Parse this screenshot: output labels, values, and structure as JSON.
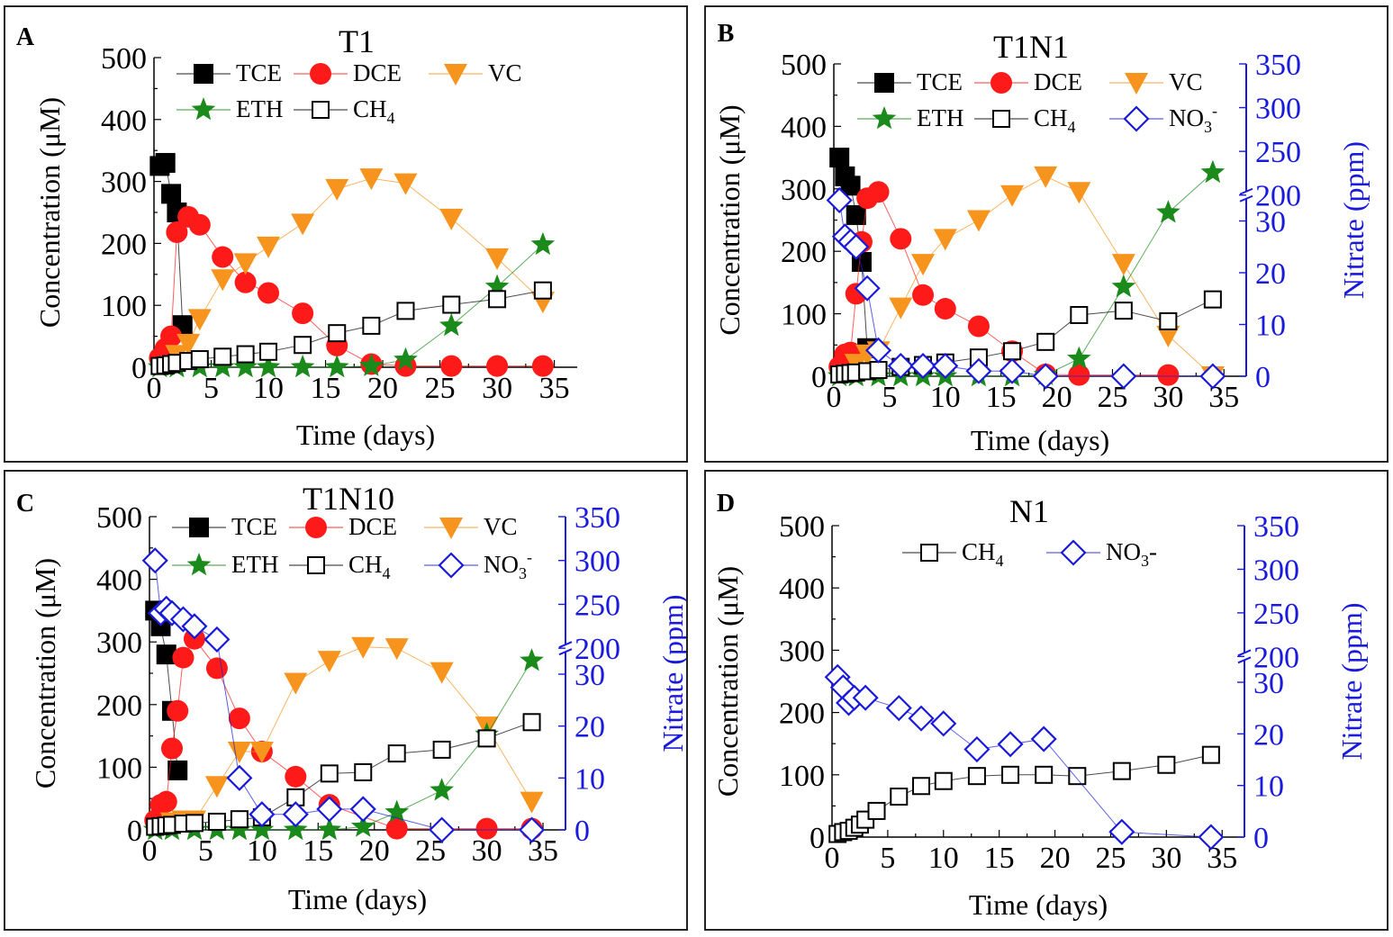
{
  "colors": {
    "TCE": "#000000",
    "DCE": "#ff1a1a",
    "VC": "#f7941d",
    "ETH": "#1a8a1a",
    "CH4": "#000000",
    "NO3": "#1a1adc"
  },
  "chart_data": [
    {
      "label": "A",
      "title": "T1",
      "type": "line",
      "xlabel": "Time (days)",
      "ylabel": "Concentration (μM)",
      "xlim": [
        0,
        37
      ],
      "ylim": [
        0,
        500
      ],
      "xticks": [
        "0",
        "5",
        "10",
        "15",
        "20",
        "25",
        "30",
        "35"
      ],
      "yticks": [
        "0",
        "100",
        "200",
        "300",
        "400",
        "500"
      ],
      "legend": {
        "TCE": "TCE",
        "DCE": "DCE",
        "VC": "VC",
        "ETH": "ETH",
        "CH4": "CH",
        "CH4_sub": "4"
      },
      "series": [
        {
          "name": "TCE",
          "x": [
            0.5,
            1,
            1.5,
            2,
            2.5
          ],
          "y": [
            325,
            330,
            280,
            250,
            68
          ]
        },
        {
          "name": "DCE",
          "x": [
            0.5,
            1,
            1.5,
            2,
            3,
            4,
            6,
            8,
            10,
            13,
            16,
            19,
            22,
            26,
            30,
            34
          ],
          "y": [
            15,
            30,
            50,
            218,
            243,
            230,
            178,
            137,
            120,
            87,
            35,
            5,
            2,
            2,
            2,
            2
          ]
        },
        {
          "name": "VC",
          "x": [
            2,
            3,
            4,
            6,
            8,
            10,
            13,
            16,
            19,
            22,
            26,
            30,
            34
          ],
          "y": [
            20,
            38,
            78,
            142,
            168,
            195,
            232,
            288,
            305,
            297,
            240,
            176,
            106
          ]
        },
        {
          "name": "ETH",
          "x": [
            0.5,
            2,
            4,
            6,
            8,
            10,
            13,
            16,
            19,
            22,
            26,
            30,
            34
          ],
          "y": [
            0,
            0,
            0,
            0,
            0,
            0,
            0,
            0,
            2,
            12,
            67,
            130,
            198
          ]
        },
        {
          "name": "CH4",
          "x": [
            0.5,
            1,
            1.5,
            2,
            3,
            4,
            6,
            8,
            10,
            13,
            16,
            19,
            22,
            26,
            30,
            34
          ],
          "y": [
            2,
            3,
            5,
            7,
            10,
            13,
            17,
            21,
            25,
            36,
            55,
            67,
            91,
            101,
            110,
            124
          ]
        }
      ]
    },
    {
      "label": "B",
      "title": "T1N1",
      "type": "line",
      "xlabel": "Time (days)",
      "ylabel": "Concentration (μM)",
      "y2label": "Nitrate (ppm)",
      "xlim": [
        0,
        37
      ],
      "ylim": [
        0,
        500
      ],
      "xticks": [
        "0",
        "5",
        "10",
        "15",
        "20",
        "25",
        "30",
        "35"
      ],
      "yticks": [
        "0",
        "100",
        "200",
        "300",
        "400",
        "500"
      ],
      "y2ticks": [
        "0",
        "10",
        "20",
        "30",
        "200",
        "250",
        "300",
        "350"
      ],
      "legend": {
        "TCE": "TCE",
        "DCE": "DCE",
        "VC": "VC",
        "ETH": "ETH",
        "CH4": "CH",
        "CH4_sub": "4",
        "NO3": "NO",
        "NO3_sub": "3",
        "NO3_sup": "-"
      },
      "series": [
        {
          "name": "TCE",
          "x": [
            0.5,
            1,
            1.5,
            2,
            2.5,
            3
          ],
          "y": [
            350,
            320,
            305,
            258,
            183,
            45
          ]
        },
        {
          "name": "DCE",
          "x": [
            0.5,
            1,
            1.5,
            2,
            2.5,
            3,
            4,
            6,
            8,
            10,
            13,
            16,
            19,
            22,
            30
          ],
          "y": [
            15,
            35,
            38,
            132,
            215,
            285,
            295,
            220,
            130,
            108,
            80,
            40,
            3,
            2,
            2
          ]
        },
        {
          "name": "VC",
          "x": [
            2,
            3,
            4,
            6,
            8,
            10,
            13,
            16,
            19,
            22,
            26,
            30,
            34
          ],
          "y": [
            20,
            35,
            40,
            110,
            180,
            220,
            250,
            290,
            320,
            295,
            180,
            65,
            0
          ]
        },
        {
          "name": "ETH",
          "x": [
            0.5,
            2,
            4,
            6,
            8,
            10,
            13,
            16,
            19,
            22,
            26,
            30,
            34
          ],
          "y": [
            0,
            0,
            0,
            0,
            0,
            0,
            0,
            0,
            2,
            28,
            143,
            262,
            326
          ]
        },
        {
          "name": "CH4",
          "x": [
            0.5,
            1,
            1.5,
            2,
            3,
            4,
            6,
            8,
            10,
            13,
            16,
            19,
            22,
            26,
            30,
            34
          ],
          "y": [
            3,
            4,
            5,
            6,
            8,
            10,
            15,
            18,
            22,
            30,
            40,
            55,
            98,
            105,
            88,
            123
          ]
        },
        {
          "name": "NO3",
          "axis": "right",
          "x": [
            0.5,
            1,
            1.5,
            2,
            3,
            4,
            6,
            8,
            10,
            13,
            16,
            19,
            26,
            34
          ],
          "y": [
            34,
            27,
            26,
            25,
            17,
            5,
            2,
            2,
            2,
            1,
            1,
            0,
            0,
            0
          ]
        }
      ]
    },
    {
      "label": "C",
      "title": "T1N10",
      "type": "line",
      "xlabel": "Time (days)",
      "ylabel": "Concentration (μM)",
      "y2label": "Nitrate (ppm)",
      "xlim": [
        0,
        37
      ],
      "ylim": [
        0,
        500
      ],
      "xticks": [
        "0",
        "5",
        "10",
        "15",
        "20",
        "25",
        "30",
        "35"
      ],
      "yticks": [
        "0",
        "100",
        "200",
        "300",
        "400",
        "500"
      ],
      "y2ticks": [
        "0",
        "10",
        "20",
        "30",
        "200",
        "250",
        "300",
        "350"
      ],
      "legend": {
        "TCE": "TCE",
        "DCE": "DCE",
        "VC": "VC",
        "ETH": "ETH",
        "CH4": "CH",
        "CH4_sub": "4",
        "NO3": "NO",
        "NO3_sub": "3",
        "NO3_sup": "-"
      },
      "series": [
        {
          "name": "TCE",
          "x": [
            0.5,
            1,
            1.5,
            2,
            2.5
          ],
          "y": [
            350,
            325,
            280,
            190,
            95
          ]
        },
        {
          "name": "DCE",
          "x": [
            0.5,
            1,
            1.5,
            2,
            2.5,
            3,
            4,
            6,
            8,
            10,
            13,
            16,
            22,
            30,
            34
          ],
          "y": [
            15,
            40,
            45,
            130,
            190,
            275,
            305,
            258,
            178,
            125,
            85,
            40,
            2,
            2,
            2
          ]
        },
        {
          "name": "VC",
          "x": [
            2,
            3,
            4,
            6,
            8,
            10,
            13,
            16,
            19,
            22,
            26,
            30,
            34
          ],
          "y": [
            12,
            15,
            15,
            70,
            125,
            125,
            235,
            270,
            292,
            290,
            252,
            165,
            45
          ]
        },
        {
          "name": "ETH",
          "x": [
            0.5,
            2,
            4,
            6,
            8,
            10,
            13,
            16,
            19,
            22,
            26,
            30,
            34
          ],
          "y": [
            0,
            0,
            0,
            0,
            0,
            0,
            0,
            0,
            5,
            28,
            63,
            152,
            270
          ]
        },
        {
          "name": "CH4",
          "x": [
            0.5,
            1,
            1.5,
            2,
            3,
            4,
            6,
            8,
            10,
            13,
            16,
            19,
            22,
            26,
            30,
            34
          ],
          "y": [
            5,
            6,
            7,
            8,
            10,
            11,
            13,
            17,
            20,
            52,
            90,
            92,
            122,
            128,
            146,
            172
          ]
        },
        {
          "name": "NO3",
          "axis": "right",
          "x": [
            0.5,
            1,
            1.5,
            2,
            3,
            4,
            6,
            8,
            10,
            13,
            16,
            19,
            26,
            34
          ],
          "y": [
            300,
            240,
            245,
            240,
            233,
            225,
            210,
            10,
            3,
            3,
            4,
            4,
            0,
            0
          ]
        }
      ]
    },
    {
      "label": "D",
      "title": "N1",
      "type": "line",
      "xlabel": "Time (days)",
      "ylabel": "Concentration (μM)",
      "y2label": "Nitrate (ppm)",
      "xlim": [
        0,
        37
      ],
      "ylim": [
        0,
        500
      ],
      "xticks": [
        "0",
        "5",
        "10",
        "15",
        "20",
        "25",
        "30",
        "35"
      ],
      "yticks": [
        "0",
        "100",
        "200",
        "300",
        "400",
        "500"
      ],
      "y2ticks": [
        "0",
        "10",
        "20",
        "30",
        "200",
        "250",
        "300",
        "350"
      ],
      "legend": {
        "CH4": "CH",
        "CH4_sub": "4",
        "NO3": "NO",
        "NO3_sub": "3",
        "NO3_suffix": "-"
      },
      "series": [
        {
          "name": "CH4",
          "x": [
            0.5,
            1,
            1.5,
            2,
            2.5,
            3,
            4,
            6,
            8,
            10,
            13,
            16,
            19,
            22,
            26,
            30,
            34
          ],
          "y": [
            5,
            8,
            10,
            15,
            20,
            28,
            42,
            65,
            82,
            90,
            98,
            100,
            100,
            98,
            106,
            116,
            132
          ]
        },
        {
          "name": "NO3",
          "axis": "right",
          "x": [
            0.5,
            1,
            1.5,
            2,
            3,
            6,
            8,
            10,
            13,
            16,
            19,
            26,
            34
          ],
          "y": [
            31,
            29,
            26,
            27,
            27,
            25,
            23,
            22,
            17,
            18,
            19,
            1,
            0
          ]
        }
      ]
    }
  ]
}
